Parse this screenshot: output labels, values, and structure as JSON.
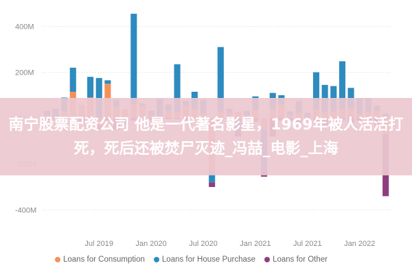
{
  "chart_data": {
    "type": "bar",
    "stacked": true,
    "ylim": [
      -500,
      500
    ],
    "y_ticks": [
      {
        "value": 400,
        "label": "400M"
      },
      {
        "value": 200,
        "label": "200M"
      },
      {
        "value": 0,
        "label": "0M"
      },
      {
        "value": -200,
        "label": "-200M"
      },
      {
        "value": -400,
        "label": "-400M"
      }
    ],
    "x_ticks": [
      {
        "index": 6,
        "label": "Jul 2019"
      },
      {
        "index": 12,
        "label": "Jan 2020"
      },
      {
        "index": 18,
        "label": "Jul 2020"
      },
      {
        "index": 24,
        "label": "Jan 2021"
      },
      {
        "index": 30,
        "label": "Jul 2021"
      },
      {
        "index": 36,
        "label": "Jan 2022"
      }
    ],
    "grid": true,
    "legend_position": "bottom",
    "colors": {
      "Loans for Consumption": "#f4905a",
      "Loans for House Purchase": "#2e8bbf",
      "Loans for Other": "#8e3e7e"
    },
    "series": [
      {
        "name": "Loans for Consumption",
        "values": [
          12,
          5,
          30,
          115,
          58,
          90,
          -30,
          150,
          50,
          40,
          60,
          55,
          12,
          -35,
          30,
          25,
          55,
          40,
          20,
          -240,
          30,
          20,
          28,
          12,
          35,
          -50,
          40,
          60,
          10,
          25,
          8,
          40,
          25,
          30,
          38,
          42,
          18,
          28,
          30,
          -70
        ]
      },
      {
        "name": "Loans for House Purchase",
        "values": [
          20,
          35,
          60,
          105,
          -10,
          90,
          175,
          15,
          30,
          -20,
          395,
          10,
          20,
          85,
          30,
          210,
          20,
          75,
          60,
          -40,
          280,
          20,
          -50,
          20,
          60,
          -180,
          70,
          40,
          20,
          50,
          15,
          160,
          120,
          110,
          210,
          90,
          70,
          60,
          25,
          20
        ]
      },
      {
        "name": "Loans for Other",
        "values": [
          -10,
          -5,
          -10,
          0,
          -15,
          0,
          -20,
          -10,
          -50,
          -8,
          -10,
          -5,
          -10,
          0,
          -5,
          -5,
          -10,
          -5,
          -10,
          -20,
          -10,
          -20,
          -30,
          -10,
          -15,
          -25,
          -80,
          -10,
          -10,
          -20,
          -10,
          -20,
          -40,
          -20,
          -10,
          -20,
          -10,
          -20,
          -30,
          -270
        ]
      }
    ]
  },
  "legend": [
    {
      "label": "Loans for Consumption",
      "color": "#f4905a"
    },
    {
      "label": "Loans for House Purchase",
      "color": "#2e8bbf"
    },
    {
      "label": "Loans for Other",
      "color": "#8e3e7e"
    }
  ],
  "banner": {
    "text": "南宁股票配资公司 他是一代著名影星，1969年被人活活打死，死后还被焚尸灭迹_冯喆_电影_上海"
  }
}
